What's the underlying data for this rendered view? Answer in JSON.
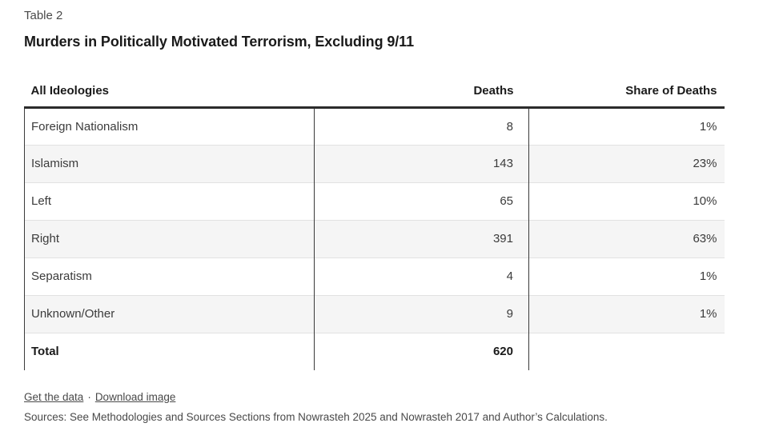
{
  "header": {
    "kicker": "Table 2",
    "title": "Murders in Politically Motivated Terrorism, Excluding 9/11"
  },
  "chart_data": {
    "type": "table",
    "kicker": "Table 2",
    "title": "Murders in Politically Motivated Terrorism, Excluding 9/11",
    "columns": [
      "All Ideologies",
      "Deaths",
      "Share of Deaths"
    ],
    "rows": [
      [
        "Foreign Nationalism",
        "8",
        "1%"
      ],
      [
        "Islamism",
        "143",
        "23%"
      ],
      [
        "Left",
        "65",
        "10%"
      ],
      [
        "Right",
        "391",
        "63%"
      ],
      [
        "Separatism",
        "4",
        "1%"
      ],
      [
        "Unknown/Other",
        "9",
        "1%"
      ]
    ],
    "total_row": [
      "Total",
      "620",
      ""
    ],
    "layout_hints": {
      "zebra_striping": true,
      "striped_rows": [
        "Islamism",
        "Right",
        "Unknown/Other"
      ],
      "column_alignment": [
        "left",
        "right",
        "right"
      ]
    }
  },
  "footer": {
    "links": [
      {
        "label": "Get the data"
      },
      {
        "label": "Download image"
      }
    ],
    "separator": "·",
    "sources": "Sources: See Methodologies and Sources Sections from Nowrasteh 2025 and Nowrasteh 2017 and Author’s Calculations."
  },
  "colors": {
    "background": "#ffffff",
    "text_primary": "#1a1a1a",
    "text_body": "#3b3b3b",
    "text_secondary": "#494949",
    "header_rule": "#2b2b2b",
    "column_rule": "#3a3a3a",
    "row_divider": "#e2e2e2",
    "row_stripe": "#f5f5f5"
  }
}
